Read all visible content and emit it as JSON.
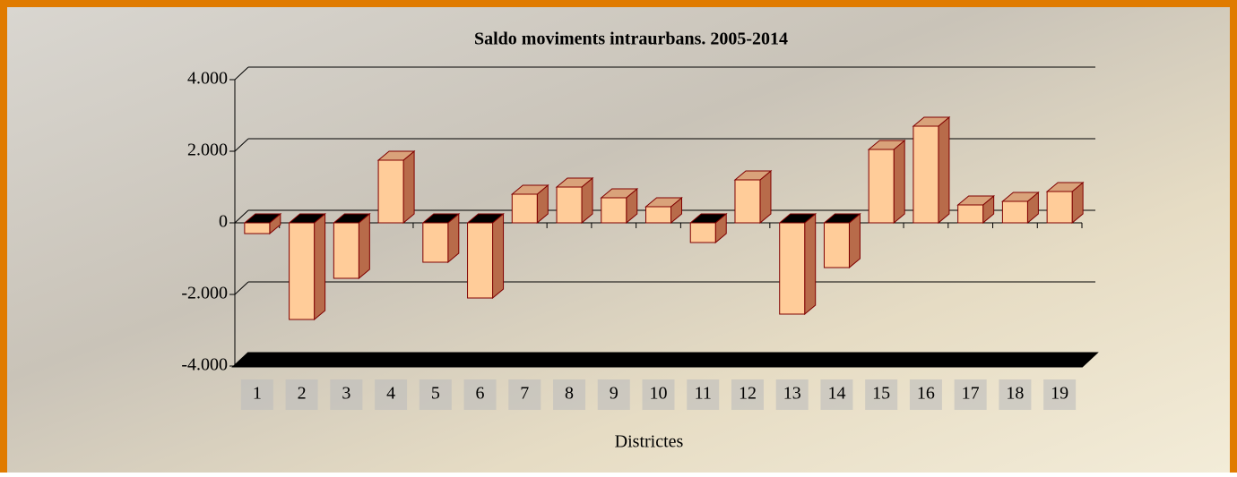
{
  "chart_data": {
    "type": "bar3d",
    "title": "Saldo moviments intraurbans. 2005-2014",
    "x_label": "Districtes",
    "categories": [
      "1",
      "2",
      "3",
      "4",
      "5",
      "6",
      "7",
      "8",
      "9",
      "10",
      "11",
      "12",
      "13",
      "14",
      "15",
      "16",
      "17",
      "18",
      "19"
    ],
    "values": [
      -300,
      -2700,
      -1550,
      1750,
      -1100,
      -2100,
      800,
      1000,
      700,
      450,
      -550,
      1200,
      -2550,
      -1250,
      2050,
      2700,
      500,
      600,
      875
    ],
    "color": "#ffcc99",
    "ylim": [
      -4000,
      4000
    ],
    "yticks": [
      {
        "value": -4000,
        "label": "-4.000"
      },
      {
        "value": -2000,
        "label": "-2.000"
      },
      0,
      {
        "value": 2000,
        "label": "2.000"
      },
      {
        "value": 4000,
        "label": "4.000"
      }
    ],
    "grid": true
  }
}
